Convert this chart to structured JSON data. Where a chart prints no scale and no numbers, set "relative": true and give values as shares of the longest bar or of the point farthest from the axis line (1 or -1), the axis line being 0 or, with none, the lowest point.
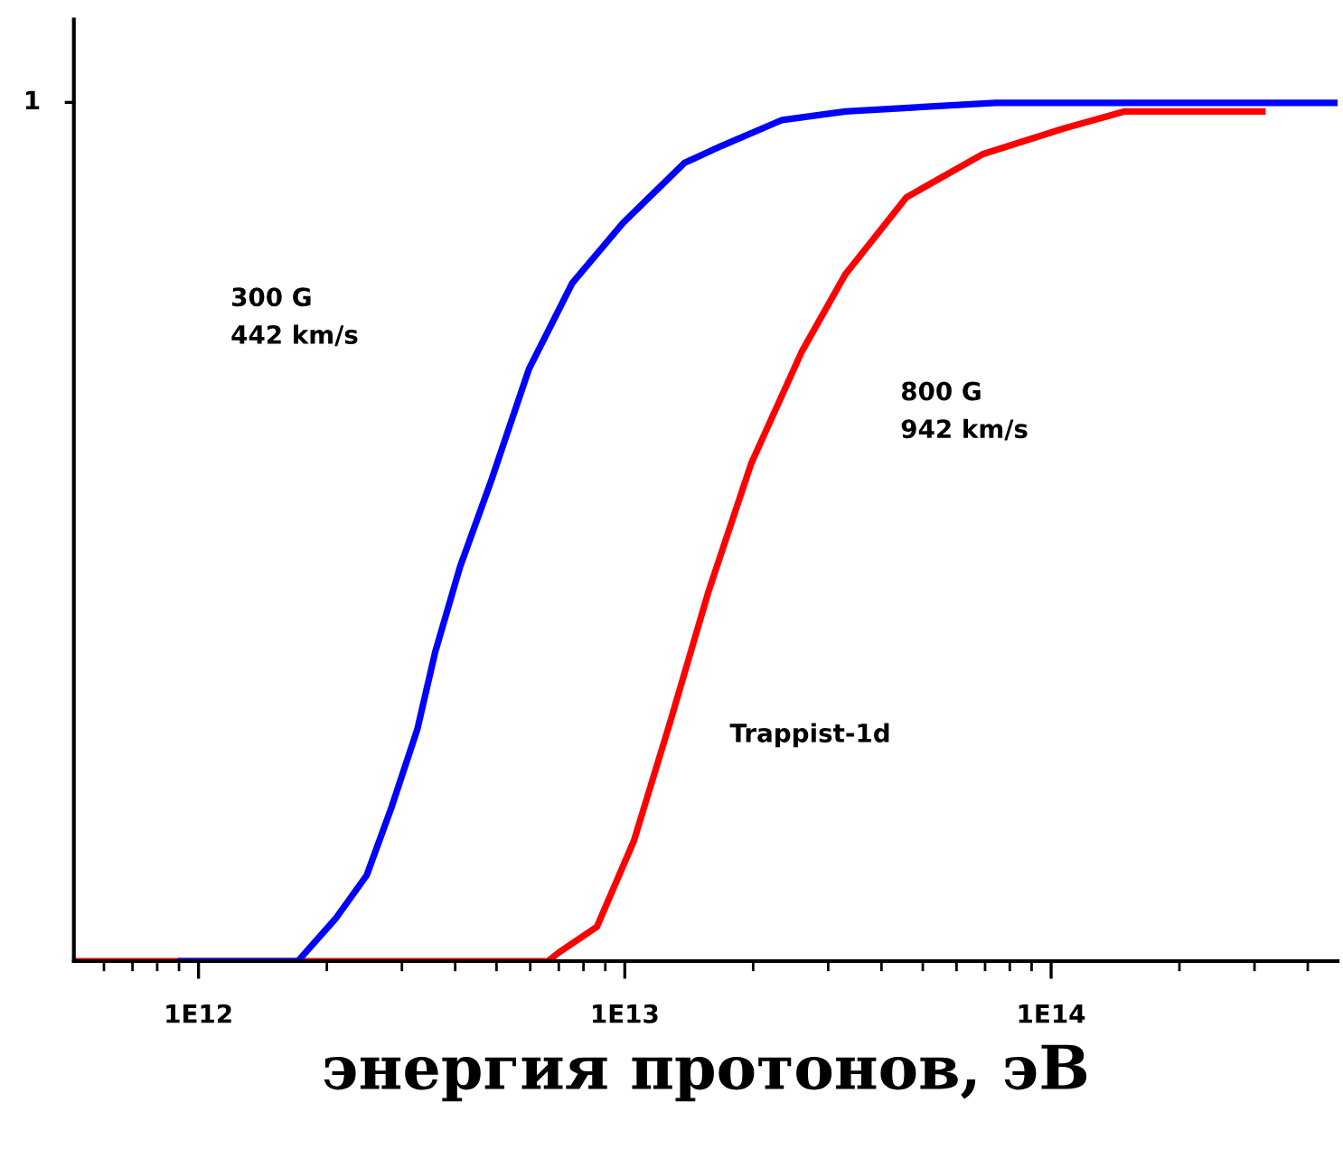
{
  "chart_data": {
    "type": "line",
    "relative": true,
    "xlabel": "энергия протонов, эВ",
    "log": "x",
    "xlim": [
      510000000000.0,
      470000000000000.0
    ],
    "xticks": [
      {
        "value": 1000000000000.0,
        "label": "1E12"
      },
      {
        "value": 10000000000000.0,
        "label": "1E13"
      },
      {
        "value": 100000000000000.0,
        "label": "1E14"
      }
    ],
    "series": [
      {
        "color": "#ff0000",
        "x": [
          510000000000.0,
          6600000000000.0,
          7000000000000.0,
          8600000000000.0,
          10500000000000.0,
          12800000000000.0,
          15700000000000.0,
          19800000000000.0,
          26000000000000.0,
          32900000000000.0,
          45800000000000.0,
          69000000000000.0,
          107000000000000.0,
          149000000000000.0,
          313000000000000.0
        ],
        "values": [
          0,
          0,
          0.01,
          0.04,
          0.14,
          0.28,
          0.43,
          0.58,
          0.71,
          0.8,
          0.89,
          0.94,
          0.97,
          0.99,
          0.99
        ]
      },
      {
        "color": "#0000ff",
        "x": [
          910000000000.0,
          1710000000000.0,
          2100000000000.0,
          2480000000000.0,
          2840000000000.0,
          3260000000000.0,
          3590000000000.0,
          4110000000000.0,
          4860000000000.0,
          5960000000000.0,
          7530000000000.0,
          9900000000000.0,
          13800000000000.0,
          16900000000000.0,
          23400000000000.0,
          32900000000000.0,
          74000000000000.0,
          462000000000000.0
        ],
        "values": [
          0,
          0,
          0.05,
          0.1,
          0.18,
          0.27,
          0.36,
          0.46,
          0.56,
          0.69,
          0.79,
          0.86,
          0.93,
          0.95,
          0.98,
          0.99,
          1.0,
          1.0
        ]
      }
    ],
    "annotations": [
      "1",
      "300 G\n442 km/s",
      "800 G\n942 km/s",
      "Trappist-1d"
    ],
    "grid": false,
    "legend": false,
    "marker": "none",
    "line_style": "solid"
  }
}
